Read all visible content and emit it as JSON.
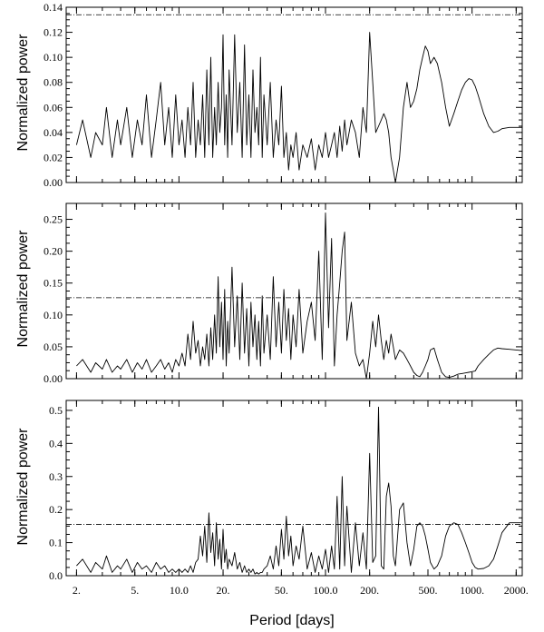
{
  "chart_data": {
    "type": "line",
    "xlabel": "Period [days]",
    "x_scale": "log",
    "xlim": [
      1.7,
      2200
    ],
    "x_ticks": [
      2,
      5,
      10,
      20,
      50,
      100,
      200,
      500,
      1000,
      2000
    ],
    "x_tick_labels": [
      "2.",
      "5.",
      "10.0",
      "20.",
      "50.",
      "100.0",
      "200.",
      "500.",
      "1000.",
      "2000."
    ],
    "panels": [
      {
        "ylabel": "Normalized power",
        "ylim": [
          0,
          0.14
        ],
        "y_ticks": [
          0,
          0.02,
          0.04,
          0.06,
          0.08,
          0.1,
          0.12,
          0.14
        ],
        "y_tick_labels": [
          "0.00",
          "0.02",
          "0.04",
          "0.06",
          "0.08",
          "0.10",
          "0.12",
          "0.14"
        ],
        "threshold": 0.134,
        "series": [
          {
            "x": [
              2,
              2.2,
              2.5,
              2.7,
              3,
              3.2,
              3.5,
              3.8,
              4,
              4.4,
              4.8,
              5.2,
              5.6,
              6,
              6.5,
              7,
              7.5,
              8,
              8.5,
              9,
              9.5,
              10,
              10.5,
              11,
              11.5,
              12,
              12.5,
              13,
              13.5,
              14,
              14.5,
              15,
              15.5,
              16,
              16.5,
              17,
              17.5,
              18,
              18.5,
              19,
              19.5,
              20,
              20.5,
              21,
              21.5,
              22,
              23,
              24,
              25,
              26,
              27,
              28,
              29,
              30,
              31,
              32,
              33,
              34,
              35,
              36,
              37,
              38,
              40,
              42,
              44,
              46,
              48,
              50,
              52,
              54,
              56,
              58,
              60,
              63,
              66,
              70,
              75,
              80,
              85,
              90,
              95,
              100,
              105,
              110,
              115,
              120,
              125,
              130,
              135,
              140,
              150,
              160,
              170,
              180,
              190,
              200,
              210,
              220,
              230,
              240,
              250,
              260,
              270,
              280,
              290,
              300,
              320,
              340,
              360,
              380,
              400,
              420,
              440,
              460,
              480,
              500,
              520,
              550,
              580,
              620,
              660,
              700,
              750,
              800,
              850,
              900,
              950,
              1000,
              1050,
              1100,
              1200,
              1300,
              1400,
              1500,
              1600,
              1800,
              2000,
              2200
            ],
            "y": [
              0.03,
              0.05,
              0.02,
              0.04,
              0.03,
              0.06,
              0.02,
              0.05,
              0.03,
              0.06,
              0.02,
              0.05,
              0.03,
              0.07,
              0.02,
              0.05,
              0.08,
              0.03,
              0.06,
              0.02,
              0.07,
              0.03,
              0.05,
              0.02,
              0.06,
              0.03,
              0.08,
              0.02,
              0.05,
              0.03,
              0.07,
              0.02,
              0.09,
              0.03,
              0.1,
              0.02,
              0.06,
              0.03,
              0.08,
              0.04,
              0.06,
              0.118,
              0.03,
              0.07,
              0.02,
              0.09,
              0.03,
              0.118,
              0.04,
              0.08,
              0.02,
              0.11,
              0.03,
              0.07,
              0.02,
              0.09,
              0.04,
              0.06,
              0.03,
              0.1,
              0.02,
              0.07,
              0.03,
              0.08,
              0.02,
              0.05,
              0.03,
              0.077,
              0.02,
              0.04,
              0.01,
              0.03,
              0.02,
              0.04,
              0.01,
              0.03,
              0.02,
              0.035,
              0.01,
              0.03,
              0.02,
              0.04,
              0.02,
              0.03,
              0.04,
              0.02,
              0.045,
              0.025,
              0.05,
              0.03,
              0.05,
              0.04,
              0.02,
              0.06,
              0.04,
              0.12,
              0.08,
              0.04,
              0.045,
              0.05,
              0.055,
              0.05,
              0.04,
              0.02,
              0.01,
              0.0,
              0.02,
              0.06,
              0.08,
              0.06,
              0.065,
              0.075,
              0.09,
              0.1,
              0.109,
              0.105,
              0.095,
              0.1,
              0.095,
              0.08,
              0.06,
              0.045,
              0.055,
              0.065,
              0.074,
              0.08,
              0.083,
              0.082,
              0.077,
              0.07,
              0.055,
              0.045,
              0.04,
              0.041,
              0.043,
              0.044,
              0.044,
              0.044
            ]
          }
        ]
      },
      {
        "ylabel": "Normalized power",
        "ylim": [
          0,
          0.275
        ],
        "y_ticks": [
          0,
          0.05,
          0.1,
          0.15,
          0.2,
          0.25
        ],
        "y_tick_labels": [
          "0.00",
          "0.05",
          "0.10",
          "0.15",
          "0.20",
          "0.25"
        ],
        "threshold": 0.127,
        "series": [
          {
            "x": [
              2,
              2.2,
              2.5,
              2.7,
              3,
              3.2,
              3.5,
              3.8,
              4,
              4.4,
              4.8,
              5.2,
              5.6,
              6,
              6.5,
              7,
              7.5,
              8,
              8.5,
              9,
              9.5,
              10,
              10.5,
              11,
              11.5,
              12,
              12.5,
              13,
              13.5,
              14,
              14.5,
              15,
              15.5,
              16,
              16.5,
              17,
              17.5,
              18,
              18.5,
              19,
              19.5,
              20,
              20.5,
              21,
              21.5,
              22,
              23,
              24,
              25,
              26,
              27,
              28,
              29,
              30,
              31,
              32,
              33,
              34,
              35,
              36,
              37,
              38,
              40,
              42,
              44,
              46,
              48,
              50,
              52,
              54,
              56,
              58,
              60,
              63,
              66,
              70,
              75,
              80,
              85,
              90,
              95,
              100,
              105,
              110,
              115,
              120,
              125,
              130,
              135,
              140,
              150,
              160,
              170,
              180,
              190,
              200,
              210,
              220,
              230,
              240,
              250,
              260,
              270,
              280,
              290,
              300,
              320,
              340,
              360,
              380,
              400,
              420,
              440,
              460,
              480,
              500,
              520,
              550,
              580,
              620,
              660,
              700,
              750,
              800,
              850,
              900,
              950,
              1000,
              1050,
              1100,
              1200,
              1300,
              1400,
              1500,
              1600,
              1800,
              2000,
              2200
            ],
            "y": [
              0.02,
              0.03,
              0.01,
              0.025,
              0.015,
              0.03,
              0.01,
              0.02,
              0.015,
              0.03,
              0.01,
              0.025,
              0.015,
              0.03,
              0.01,
              0.02,
              0.03,
              0.015,
              0.025,
              0.01,
              0.03,
              0.02,
              0.04,
              0.02,
              0.07,
              0.03,
              0.09,
              0.04,
              0.06,
              0.02,
              0.05,
              0.03,
              0.07,
              0.02,
              0.08,
              0.03,
              0.1,
              0.04,
              0.16,
              0.05,
              0.12,
              0.03,
              0.14,
              0.02,
              0.09,
              0.04,
              0.175,
              0.05,
              0.13,
              0.03,
              0.15,
              0.04,
              0.11,
              0.02,
              0.12,
              0.05,
              0.1,
              0.03,
              0.09,
              0.02,
              0.13,
              0.04,
              0.1,
              0.03,
              0.16,
              0.05,
              0.12,
              0.04,
              0.14,
              0.06,
              0.11,
              0.03,
              0.1,
              0.05,
              0.14,
              0.04,
              0.09,
              0.12,
              0.06,
              0.2,
              0.03,
              0.26,
              0.08,
              0.22,
              0.02,
              0.1,
              0.15,
              0.2,
              0.23,
              0.06,
              0.12,
              0.04,
              0.02,
              0.03,
              0.0,
              0.04,
              0.09,
              0.05,
              0.1,
              0.06,
              0.03,
              0.06,
              0.04,
              0.07,
              0.05,
              0.03,
              0.045,
              0.04,
              0.03,
              0.02,
              0.01,
              0.005,
              0.003,
              0.01,
              0.02,
              0.03,
              0.045,
              0.048,
              0.03,
              0.01,
              0.003,
              0.002,
              0.004,
              0.007,
              0.008,
              0.009,
              0.01,
              0.011,
              0.012,
              0.02,
              0.03,
              0.038,
              0.045,
              0.048,
              0.047,
              0.046,
              0.045,
              0.044
            ]
          }
        ]
      },
      {
        "ylabel": "Normalized power",
        "ylim": [
          0,
          0.53
        ],
        "y_ticks": [
          0,
          0.1,
          0.2,
          0.3,
          0.4,
          0.5
        ],
        "y_tick_labels": [
          "0.0",
          "0.1",
          "0.2",
          "0.3",
          "0.4",
          "0.5"
        ],
        "threshold": 0.155,
        "series": [
          {
            "x": [
              2,
              2.2,
              2.5,
              2.7,
              3,
              3.2,
              3.5,
              3.8,
              4,
              4.4,
              4.8,
              5.2,
              5.6,
              6,
              6.5,
              7,
              7.5,
              8,
              8.5,
              9,
              9.5,
              10,
              10.5,
              11,
              11.5,
              12,
              12.5,
              13,
              13.5,
              14,
              14.5,
              15,
              15.5,
              16,
              16.5,
              17,
              17.5,
              18,
              18.5,
              19,
              19.5,
              20,
              20.5,
              21,
              21.5,
              22,
              23,
              24,
              25,
              26,
              27,
              28,
              29,
              30,
              31,
              32,
              33,
              34,
              35,
              36,
              37,
              38,
              40,
              42,
              44,
              46,
              48,
              50,
              52,
              54,
              56,
              58,
              60,
              63,
              66,
              70,
              75,
              80,
              85,
              90,
              95,
              100,
              105,
              110,
              115,
              120,
              125,
              130,
              135,
              140,
              150,
              160,
              170,
              180,
              190,
              200,
              210,
              220,
              230,
              240,
              250,
              260,
              270,
              280,
              290,
              300,
              320,
              340,
              360,
              380,
              400,
              420,
              440,
              460,
              480,
              500,
              520,
              550,
              580,
              620,
              660,
              700,
              750,
              800,
              850,
              900,
              950,
              1000,
              1050,
              1100,
              1200,
              1300,
              1400,
              1500,
              1600,
              1800,
              2000,
              2200
            ],
            "y": [
              0.03,
              0.05,
              0.01,
              0.04,
              0.02,
              0.06,
              0.01,
              0.03,
              0.02,
              0.05,
              0.01,
              0.04,
              0.02,
              0.03,
              0.01,
              0.04,
              0.02,
              0.03,
              0.01,
              0.02,
              0.01,
              0.02,
              0.01,
              0.02,
              0.01,
              0.03,
              0.01,
              0.04,
              0.05,
              0.12,
              0.06,
              0.15,
              0.04,
              0.19,
              0.07,
              0.13,
              0.03,
              0.16,
              0.05,
              0.11,
              0.02,
              0.14,
              0.04,
              0.08,
              0.02,
              0.05,
              0.03,
              0.07,
              0.02,
              0.04,
              0.01,
              0.03,
              0.01,
              0.02,
              0.01,
              0.02,
              0.005,
              0.01,
              0.005,
              0.01,
              0.01,
              0.02,
              0.03,
              0.06,
              0.02,
              0.09,
              0.03,
              0.14,
              0.05,
              0.18,
              0.06,
              0.12,
              0.03,
              0.09,
              0.05,
              0.15,
              0.02,
              0.07,
              0.01,
              0.06,
              0.02,
              0.08,
              0.01,
              0.09,
              0.02,
              0.24,
              0.02,
              0.3,
              0.03,
              0.21,
              0.01,
              0.16,
              0.03,
              0.13,
              0.02,
              0.37,
              0.04,
              0.06,
              0.51,
              0.03,
              0.02,
              0.24,
              0.28,
              0.21,
              0.06,
              0.03,
              0.2,
              0.22,
              0.1,
              0.03,
              0.08,
              0.15,
              0.16,
              0.15,
              0.12,
              0.08,
              0.04,
              0.02,
              0.03,
              0.06,
              0.12,
              0.15,
              0.16,
              0.155,
              0.13,
              0.1,
              0.07,
              0.04,
              0.025,
              0.02,
              0.022,
              0.03,
              0.05,
              0.09,
              0.13,
              0.16,
              0.16,
              0.16
            ]
          }
        ]
      }
    ]
  }
}
